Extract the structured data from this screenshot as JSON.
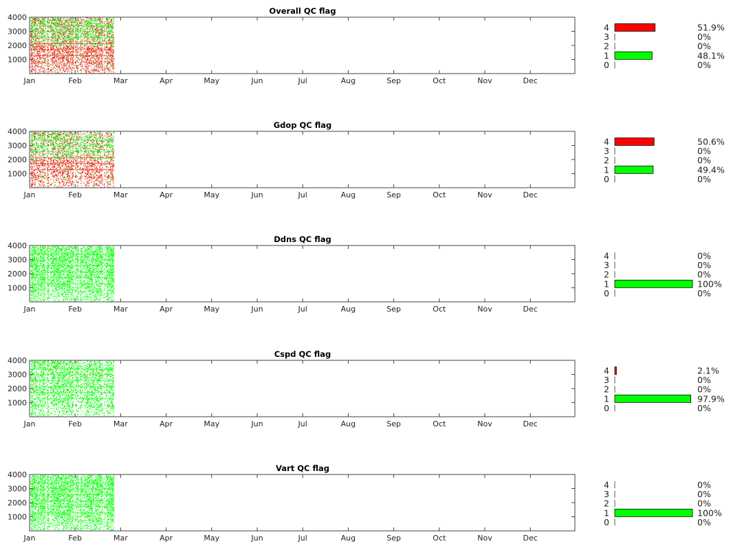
{
  "colors": {
    "bad": "#ff0000",
    "good": "#00ff00",
    "axis": "#404040"
  },
  "chart_data": [
    {
      "type": "scatter",
      "title": "Overall QC flag",
      "x_ticks": [
        "Jan",
        "Feb",
        "Mar",
        "Apr",
        "May",
        "Jun",
        "Jul",
        "Aug",
        "Sep",
        "Oct",
        "Nov",
        "Dec"
      ],
      "y_ticks": [
        1000,
        2000,
        3000,
        4000
      ],
      "ylim": [
        0,
        4000
      ],
      "data_extent_months": [
        0,
        1.85
      ],
      "mix": "red-dominant-lower",
      "histogram": {
        "type": "bar",
        "categories": [
          "4",
          "3",
          "2",
          "1",
          "0"
        ],
        "values": [
          51.9,
          0,
          0,
          48.1,
          0
        ],
        "labels": [
          "51.9%",
          "0%",
          "0%",
          "48.1%",
          "0%"
        ],
        "colors": [
          "#ff0000",
          null,
          null,
          "#00ff00",
          null
        ]
      }
    },
    {
      "type": "scatter",
      "title": "Gdop QC flag",
      "x_ticks": [
        "Jan",
        "Feb",
        "Mar",
        "Apr",
        "May",
        "Jun",
        "Jul",
        "Aug",
        "Sep",
        "Oct",
        "Nov",
        "Dec"
      ],
      "y_ticks": [
        1000,
        2000,
        3000,
        4000
      ],
      "ylim": [
        0,
        4000
      ],
      "data_extent_months": [
        0,
        1.85
      ],
      "mix": "red-dominant-lower",
      "histogram": {
        "type": "bar",
        "categories": [
          "4",
          "3",
          "2",
          "1",
          "0"
        ],
        "values": [
          50.6,
          0,
          0,
          49.4,
          0
        ],
        "labels": [
          "50.6%",
          "0%",
          "0%",
          "49.4%",
          "0%"
        ],
        "colors": [
          "#ff0000",
          null,
          null,
          "#00ff00",
          null
        ]
      }
    },
    {
      "type": "scatter",
      "title": "Ddns QC flag",
      "x_ticks": [
        "Jan",
        "Feb",
        "Mar",
        "Apr",
        "May",
        "Jun",
        "Jul",
        "Aug",
        "Sep",
        "Oct",
        "Nov",
        "Dec"
      ],
      "y_ticks": [
        1000,
        2000,
        3000,
        4000
      ],
      "ylim": [
        0,
        4000
      ],
      "data_extent_months": [
        0,
        1.85
      ],
      "mix": "green-only",
      "histogram": {
        "type": "bar",
        "categories": [
          "4",
          "3",
          "2",
          "1",
          "0"
        ],
        "values": [
          0,
          0,
          0,
          100,
          0
        ],
        "labels": [
          "0%",
          "0%",
          "0%",
          "100%",
          "0%"
        ],
        "colors": [
          null,
          null,
          null,
          "#00ff00",
          null
        ]
      }
    },
    {
      "type": "scatter",
      "title": "Cspd QC flag",
      "x_ticks": [
        "Jan",
        "Feb",
        "Mar",
        "Apr",
        "May",
        "Jun",
        "Jul",
        "Aug",
        "Sep",
        "Oct",
        "Nov",
        "Dec"
      ],
      "y_ticks": [
        1000,
        2000,
        3000,
        4000
      ],
      "ylim": [
        0,
        4000
      ],
      "data_extent_months": [
        0,
        1.85
      ],
      "mix": "green-sparse-red",
      "histogram": {
        "type": "bar",
        "categories": [
          "4",
          "3",
          "2",
          "1",
          "0"
        ],
        "values": [
          2.1,
          0,
          0,
          97.9,
          0
        ],
        "labels": [
          "2.1%",
          "0%",
          "0%",
          "97.9%",
          "0%"
        ],
        "colors": [
          "#ff0000",
          null,
          null,
          "#00ff00",
          null
        ]
      }
    },
    {
      "type": "scatter",
      "title": "Vart QC flag",
      "x_ticks": [
        "Jan",
        "Feb",
        "Mar",
        "Apr",
        "May",
        "Jun",
        "Jul",
        "Aug",
        "Sep",
        "Oct",
        "Nov",
        "Dec"
      ],
      "y_ticks": [
        1000,
        2000,
        3000,
        4000
      ],
      "ylim": [
        0,
        4000
      ],
      "data_extent_months": [
        0,
        1.85
      ],
      "mix": "green-only",
      "histogram": {
        "type": "bar",
        "categories": [
          "4",
          "3",
          "2",
          "1",
          "0"
        ],
        "values": [
          0,
          0,
          0,
          100,
          0
        ],
        "labels": [
          "0%",
          "0%",
          "0%",
          "100%",
          "0%"
        ],
        "colors": [
          null,
          null,
          null,
          "#00ff00",
          null
        ]
      }
    }
  ]
}
